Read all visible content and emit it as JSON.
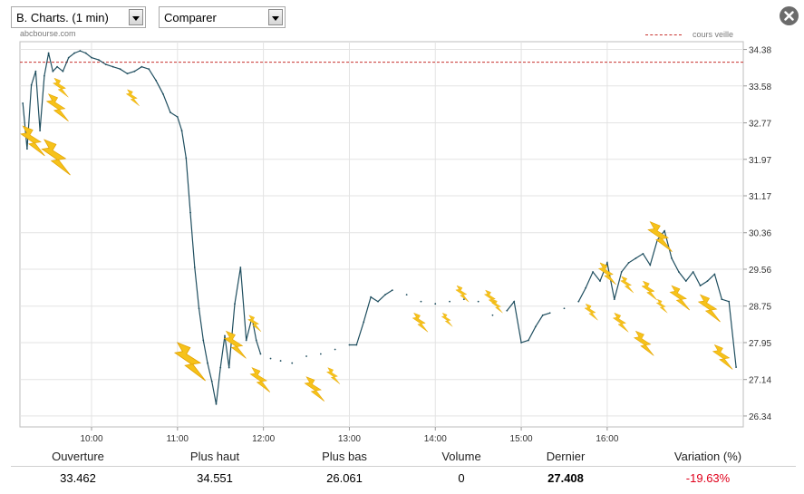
{
  "toolbar": {
    "period_select": "B. Charts. (1 min)",
    "compare_select": "Comparer"
  },
  "source_label": "abcbourse.com",
  "legend": {
    "ref_line_label": "cours veille",
    "ref_line_color": "#c8322f"
  },
  "chart_data": {
    "type": "line",
    "title": "",
    "xlabel": "",
    "ylabel": "",
    "line_color": "#1f4e5f",
    "x_ticks": [
      "10:00",
      "11:00",
      "12:00",
      "13:00",
      "14:00",
      "15:00",
      "16:00"
    ],
    "y_ticks": [
      "34.38",
      "33.58",
      "32.77",
      "31.97",
      "31.17",
      "30.36",
      "29.56",
      "28.75",
      "27.95",
      "27.14",
      "26.34"
    ],
    "y_range": [
      26.1,
      34.55
    ],
    "x_range": [
      "09:10",
      "17:35"
    ],
    "reference_line": {
      "label": "cours veille",
      "value": 34.1
    },
    "grid": true,
    "annotation_icons": "lightning-bolt",
    "series": [
      {
        "name": "",
        "points": [
          [
            "09:12",
            33.2
          ],
          [
            "09:15",
            32.2
          ],
          [
            "09:18",
            33.6
          ],
          [
            "09:21",
            33.9
          ],
          [
            "09:24",
            32.6
          ],
          [
            "09:27",
            33.8
          ],
          [
            "09:30",
            34.3
          ],
          [
            "09:33",
            33.9
          ],
          [
            "09:36",
            34.0
          ],
          [
            "09:40",
            33.9
          ],
          [
            "09:44",
            34.2
          ],
          [
            "09:48",
            34.3
          ],
          [
            "09:52",
            34.35
          ],
          [
            "09:56",
            34.3
          ],
          [
            "10:00",
            34.2
          ],
          [
            "10:05",
            34.15
          ],
          [
            "10:10",
            34.05
          ],
          [
            "10:15",
            34.0
          ],
          [
            "10:20",
            33.95
          ],
          [
            "10:25",
            33.85
          ],
          [
            "10:30",
            33.9
          ],
          [
            "10:35",
            34.0
          ],
          [
            "10:40",
            33.95
          ],
          [
            "10:45",
            33.7
          ],
          [
            "10:50",
            33.4
          ],
          [
            "10:55",
            33.0
          ],
          [
            "11:00",
            32.9
          ],
          [
            "11:03",
            32.6
          ],
          [
            "11:06",
            32.0
          ],
          [
            "11:09",
            30.8
          ],
          [
            "11:12",
            29.6
          ],
          [
            "11:15",
            28.7
          ],
          [
            "11:18",
            28.0
          ],
          [
            "11:21",
            27.5
          ],
          [
            "11:24",
            27.1
          ],
          [
            "11:27",
            26.6
          ],
          [
            "11:30",
            27.4
          ],
          [
            "11:33",
            28.1
          ],
          [
            "11:36",
            27.4
          ],
          [
            "11:40",
            28.8
          ],
          [
            "11:44",
            29.6
          ],
          [
            "11:48",
            28.0
          ],
          [
            "11:52",
            28.5
          ],
          [
            "11:55",
            28.0
          ],
          [
            "11:58",
            27.7
          ],
          [
            "12:05",
            27.6
          ],
          [
            "12:12",
            27.55
          ],
          [
            "12:20",
            27.5
          ],
          [
            "12:30",
            27.65
          ],
          [
            "12:40",
            27.7
          ],
          [
            "12:50",
            27.8
          ],
          [
            "13:00",
            27.9
          ],
          [
            "13:05",
            27.9
          ],
          [
            "13:10",
            28.4
          ],
          [
            "13:15",
            28.95
          ],
          [
            "13:20",
            28.85
          ],
          [
            "13:25",
            29.0
          ],
          [
            "13:30",
            29.1
          ],
          [
            "13:40",
            29.0
          ],
          [
            "13:50",
            28.85
          ],
          [
            "14:00",
            28.8
          ],
          [
            "14:10",
            28.85
          ],
          [
            "14:20",
            28.9
          ],
          [
            "14:30",
            28.85
          ],
          [
            "14:40",
            28.55
          ],
          [
            "14:50",
            28.65
          ],
          [
            "14:55",
            28.85
          ],
          [
            "15:00",
            27.95
          ],
          [
            "15:05",
            28.0
          ],
          [
            "15:10",
            28.3
          ],
          [
            "15:15",
            28.55
          ],
          [
            "15:20",
            28.6
          ],
          [
            "15:30",
            28.7
          ],
          [
            "15:40",
            28.85
          ],
          [
            "15:45",
            29.15
          ],
          [
            "15:50",
            29.5
          ],
          [
            "15:55",
            29.3
          ],
          [
            "16:00",
            29.7
          ],
          [
            "16:05",
            28.9
          ],
          [
            "16:10",
            29.5
          ],
          [
            "16:15",
            29.7
          ],
          [
            "16:20",
            29.8
          ],
          [
            "16:25",
            29.9
          ],
          [
            "16:30",
            29.65
          ],
          [
            "16:35",
            30.2
          ],
          [
            "16:40",
            30.4
          ],
          [
            "16:45",
            29.8
          ],
          [
            "16:50",
            29.5
          ],
          [
            "16:55",
            29.3
          ],
          [
            "17:00",
            29.5
          ],
          [
            "17:05",
            29.2
          ],
          [
            "17:10",
            29.3
          ],
          [
            "17:15",
            29.45
          ],
          [
            "17:20",
            28.9
          ],
          [
            "17:25",
            28.85
          ],
          [
            "17:30",
            27.41
          ]
        ]
      }
    ]
  },
  "stats": {
    "labels": [
      "Ouverture",
      "Plus haut",
      "Plus bas",
      "Volume",
      "Dernier",
      "Variation (%)"
    ],
    "values": [
      "33.462",
      "34.551",
      "26.061",
      "0",
      "27.408",
      "-19.63%"
    ]
  }
}
